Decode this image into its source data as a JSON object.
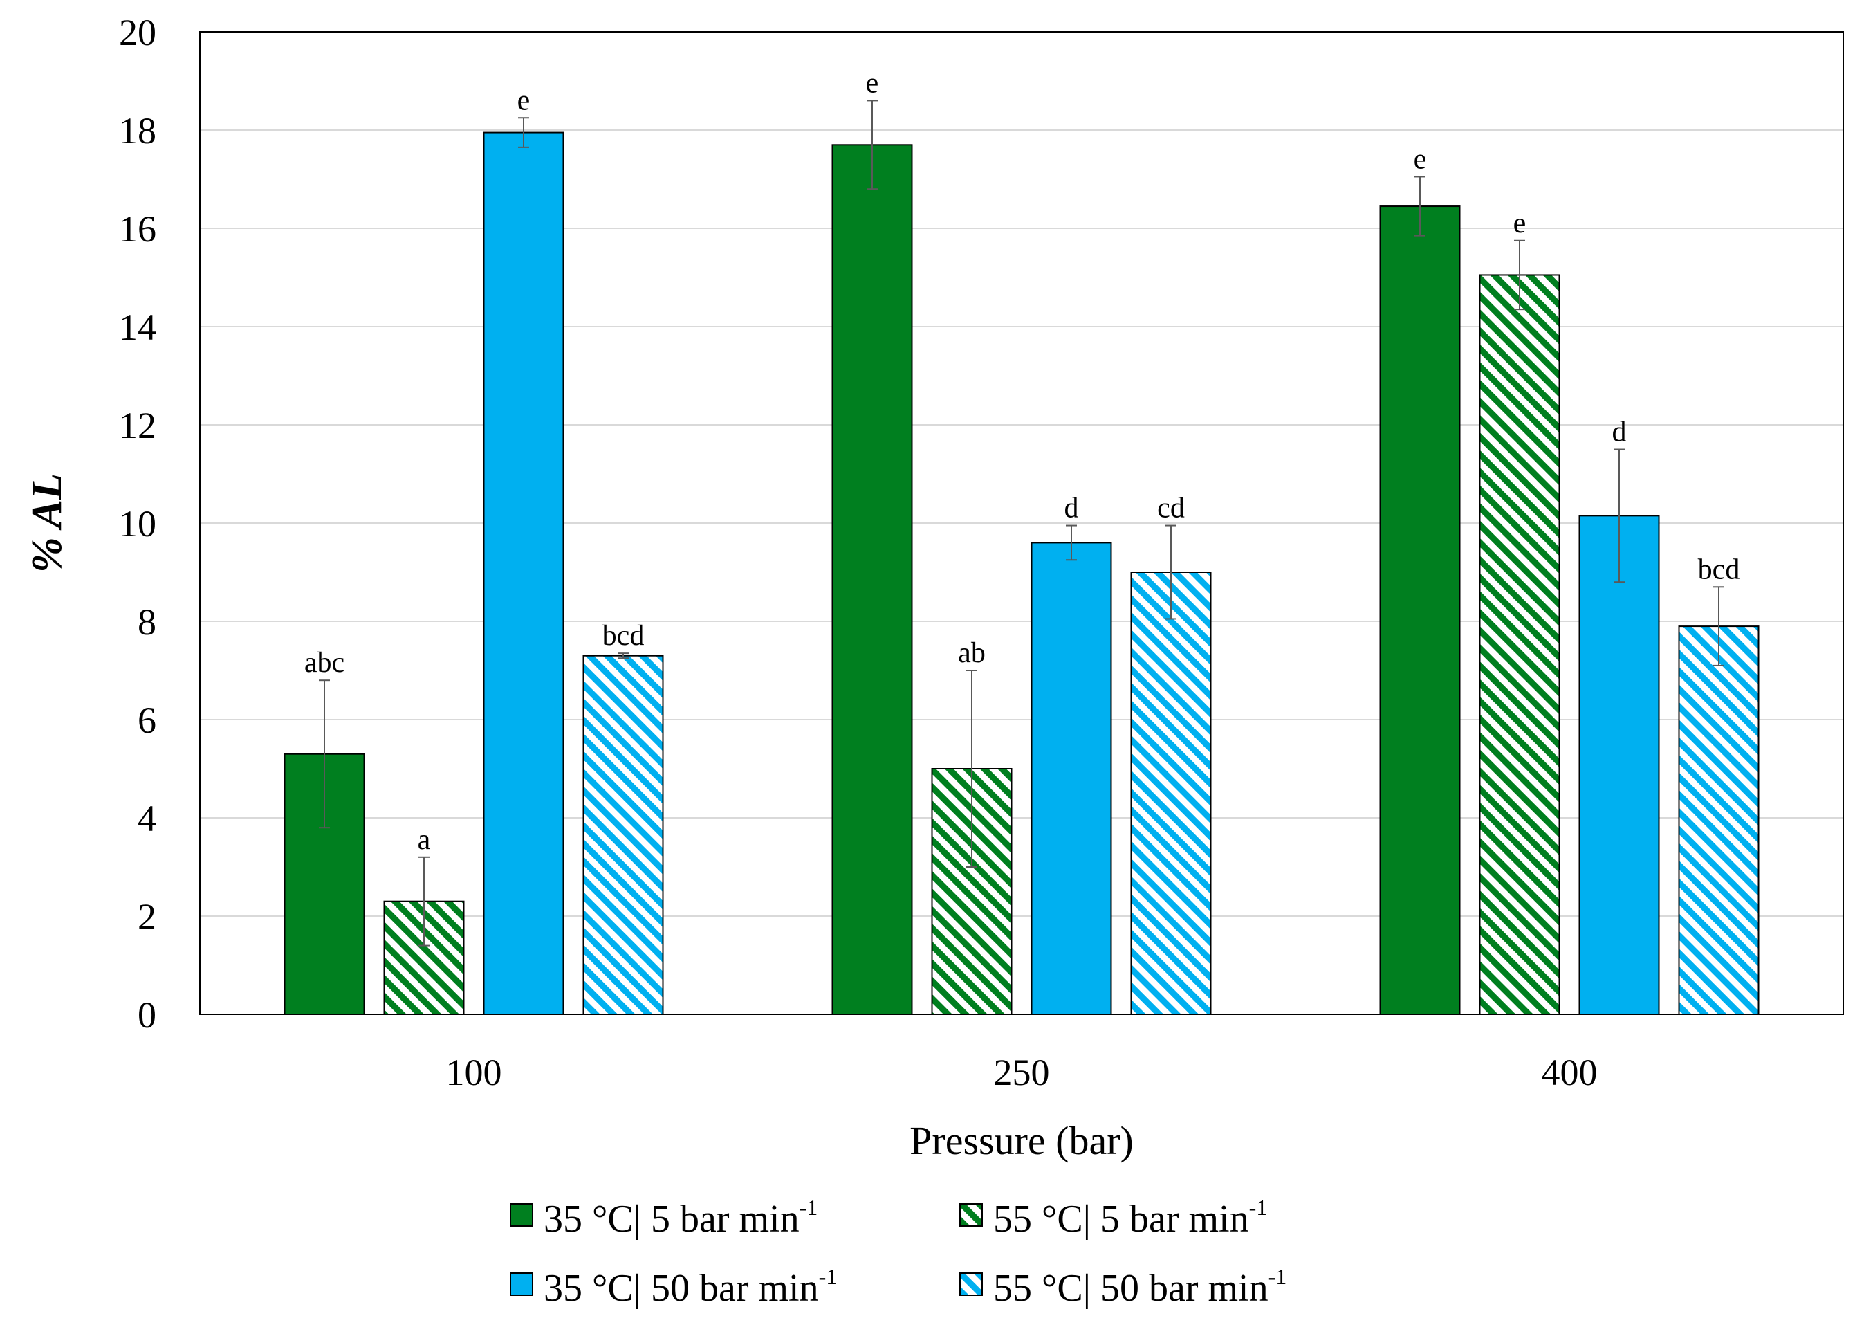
{
  "chart_data": {
    "type": "bar",
    "title": "",
    "xlabel": "Pressure (bar)",
    "ylabel_prefix": "% ",
    "ylabel_var": "AL",
    "ylim": [
      0,
      20
    ],
    "yticks": [
      0,
      2,
      4,
      6,
      8,
      10,
      12,
      14,
      16,
      18,
      20
    ],
    "grid": true,
    "legend_position": "bottom",
    "categories": [
      "100",
      "250",
      "400"
    ],
    "series": [
      {
        "legend_base": "35 °C| 5 bar min",
        "legend_sup": "-1",
        "color": "#007f1f",
        "pattern": "solid",
        "values": [
          5.3,
          17.7,
          16.45
        ],
        "errors": [
          1.5,
          0.9,
          0.6
        ],
        "labels": [
          "abc",
          "e",
          "e"
        ]
      },
      {
        "legend_base": "55 °C| 5 bar min",
        "legend_sup": "-1",
        "color": "#007f1f",
        "pattern": "hatch",
        "values": [
          2.3,
          5.0,
          15.05
        ],
        "errors": [
          0.9,
          2.0,
          0.7
        ],
        "labels": [
          "a",
          "ab",
          "e"
        ]
      },
      {
        "legend_base": "35 °C| 50 bar min",
        "legend_sup": "-1",
        "color": "#00b0f0",
        "pattern": "solid",
        "values": [
          17.95,
          9.6,
          10.15
        ],
        "errors": [
          0.3,
          0.35,
          1.35
        ],
        "labels": [
          "e",
          "d",
          "d"
        ]
      },
      {
        "legend_base": "55 °C| 50 bar min",
        "legend_sup": "-1",
        "color": "#00b0f0",
        "pattern": "hatch",
        "values": [
          7.3,
          9.0,
          7.9
        ],
        "errors": [
          0.05,
          0.95,
          0.8
        ],
        "labels": [
          "bcd",
          "cd",
          "bcd"
        ]
      }
    ]
  }
}
